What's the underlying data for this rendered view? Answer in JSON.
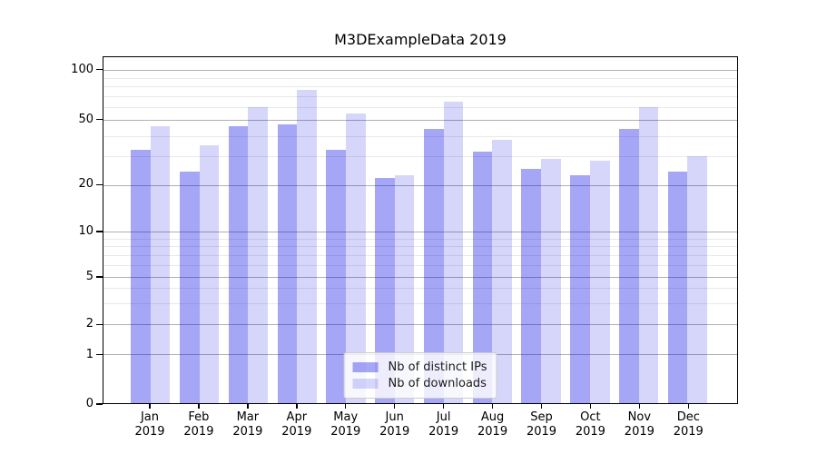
{
  "chart_data": {
    "type": "bar",
    "title": "M3DExampleData 2019",
    "categories": [
      "Jan",
      "Feb",
      "Mar",
      "Apr",
      "May",
      "Jun",
      "Jul",
      "Aug",
      "Sep",
      "Oct",
      "Nov",
      "Dec"
    ],
    "category_year": "2019",
    "series": [
      {
        "name": "Nb of distinct IPs",
        "color": "rgba(0,0,230,0.35)",
        "values": [
          33,
          24,
          46,
          47,
          33,
          22,
          44,
          32,
          25,
          23,
          44,
          24
        ]
      },
      {
        "name": "Nb of downloads",
        "color": "rgba(0,0,230,0.16)",
        "values": [
          46,
          35,
          60,
          76,
          55,
          23,
          65,
          38,
          29,
          28,
          60,
          30
        ]
      }
    ],
    "yscale": "symlog",
    "ylim": [
      0,
      120
    ],
    "yticks": [
      {
        "label": "0",
        "value": 0,
        "pct": 100
      },
      {
        "label": "1",
        "value": 1,
        "pct": 85.8
      },
      {
        "label": "2",
        "value": 2,
        "pct": 77.1
      },
      {
        "label": "5",
        "value": 5,
        "pct": 63.4
      },
      {
        "label": "10",
        "value": 10,
        "pct": 50.4
      },
      {
        "label": "20",
        "value": 20,
        "pct": 36.9
      },
      {
        "label": "50",
        "value": 50,
        "pct": 18.2
      },
      {
        "label": "100",
        "value": 100,
        "pct": 3.8
      }
    ],
    "minor_yticks": [
      3,
      4,
      6,
      7,
      8,
      9,
      30,
      40,
      60,
      70,
      80,
      90
    ],
    "grid": true,
    "legend_position": "lower center"
  },
  "colors": {
    "grid_major": "#b0b0b0",
    "grid_minor": "#e9e9e9",
    "axis": "#000000",
    "text": "#000000",
    "legend_border": "#cccccc",
    "background": "#ffffff"
  }
}
